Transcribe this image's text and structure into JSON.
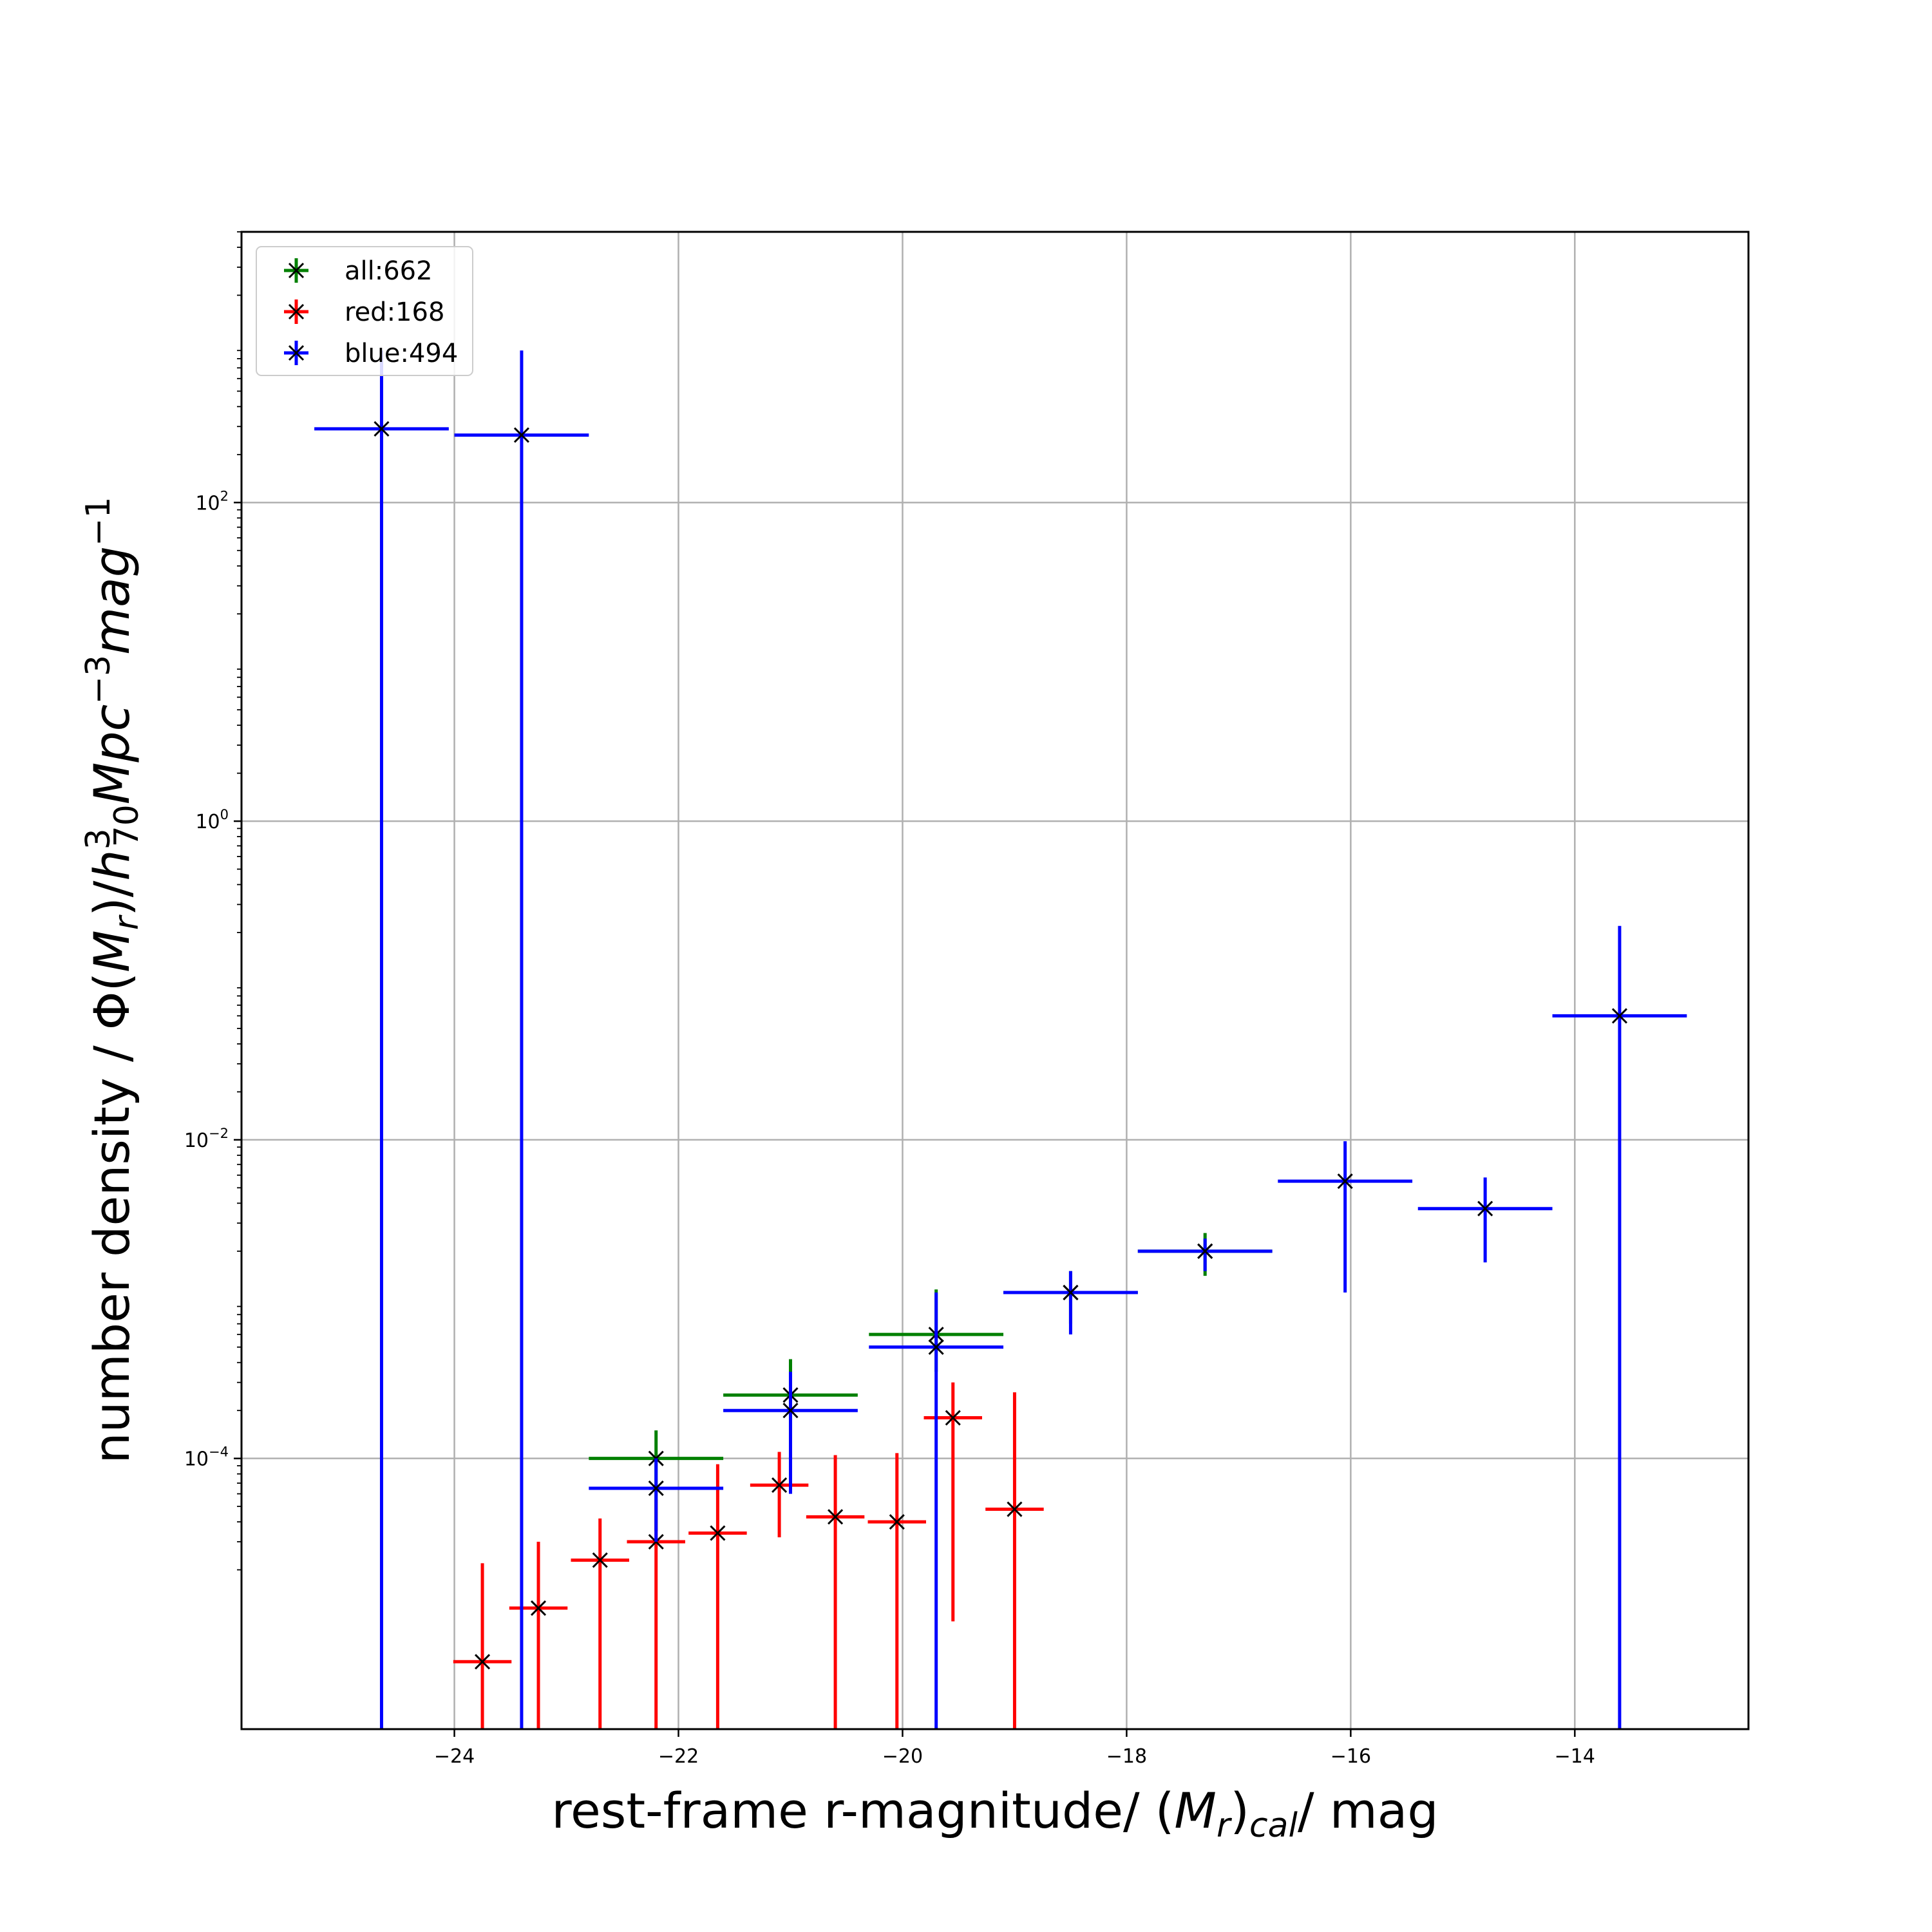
{
  "chart_data": {
    "type": "scatter",
    "title": "",
    "xlabel": "rest-frame r-magnitude/ (M_r)_cal/ mag",
    "ylabel": "number density / Φ(M_r)/h^3_70 Mpc^-3 mag^-1",
    "x_axis": {
      "range": [
        -25.9,
        -12.45
      ],
      "ticks": [
        -24,
        -22,
        -20,
        -18,
        -16,
        -14
      ],
      "tick_labels": [
        "−24",
        "−22",
        "−20",
        "−18",
        "−16",
        "−14"
      ]
    },
    "y_axis": {
      "scale": "log",
      "range": [
        2e-06,
        5000
      ],
      "ticks": [
        0.0001,
        0.01,
        1,
        100
      ],
      "tick_labels": [
        {
          "base": "10",
          "exp": "−4"
        },
        {
          "base": "10",
          "exp": "−2"
        },
        {
          "base": "10",
          "exp": "0"
        },
        {
          "base": "10",
          "exp": "2"
        }
      ]
    },
    "grid": true,
    "legend_placement": "upper-left",
    "series": [
      {
        "name": "all:662",
        "color": "#008000",
        "points": [
          {
            "x": -22.2,
            "y": 0.0001,
            "xerr": 0.6,
            "yerr_low": 3.5e-05,
            "yerr_high": 0.00015
          },
          {
            "x": -21.0,
            "y": 0.00025,
            "xerr": 0.6,
            "yerr_low": 0.00015,
            "yerr_high": 0.00042
          },
          {
            "x": -19.7,
            "y": 0.0006,
            "xerr": 0.6,
            "yerr_low": 0.00035,
            "yerr_high": 0.00115
          },
          {
            "x": -18.5,
            "y": 0.0011,
            "xerr": 0.6,
            "yerr_low": 0.0007,
            "yerr_high": 0.0015
          },
          {
            "x": -17.3,
            "y": 0.002,
            "xerr": 0.6,
            "yerr_low": 0.0014,
            "yerr_high": 0.0026
          }
        ]
      },
      {
        "name": "red:168",
        "color": "#ff0000",
        "points": [
          {
            "x": -23.75,
            "y": 5.3e-06,
            "xerr": 0.26,
            "yerr_low": 2e-06,
            "yerr_high": 2.2e-05
          },
          {
            "x": -23.25,
            "y": 1.15e-05,
            "xerr": 0.26,
            "yerr_low": 2e-06,
            "yerr_high": 3e-05
          },
          {
            "x": -22.7,
            "y": 2.3e-05,
            "xerr": 0.26,
            "yerr_low": 2e-06,
            "yerr_high": 4.2e-05
          },
          {
            "x": -22.2,
            "y": 3e-05,
            "xerr": 0.26,
            "yerr_low": 2e-06,
            "yerr_high": 5.5e-05
          },
          {
            "x": -21.65,
            "y": 3.4e-05,
            "xerr": 0.26,
            "yerr_low": 2e-06,
            "yerr_high": 9.2e-05
          },
          {
            "x": -21.1,
            "y": 6.8e-05,
            "xerr": 0.26,
            "yerr_low": 3.2e-05,
            "yerr_high": 0.00011
          },
          {
            "x": -20.6,
            "y": 4.3e-05,
            "xerr": 0.26,
            "yerr_low": 2e-06,
            "yerr_high": 0.000105
          },
          {
            "x": -20.05,
            "y": 4e-05,
            "xerr": 0.26,
            "yerr_low": 2e-06,
            "yerr_high": 0.000108
          },
          {
            "x": -19.55,
            "y": 0.00018,
            "xerr": 0.26,
            "yerr_low": 9.5e-06,
            "yerr_high": 0.0003
          },
          {
            "x": -19.0,
            "y": 4.8e-05,
            "xerr": 0.26,
            "yerr_low": 2e-06,
            "yerr_high": 0.00026
          }
        ]
      },
      {
        "name": "blue:494",
        "color": "#0000ff",
        "points": [
          {
            "x": -24.65,
            "y": 290,
            "xerr": 0.6,
            "yerr_low": 2e-06,
            "yerr_high": 900
          },
          {
            "x": -23.4,
            "y": 265,
            "xerr": 0.6,
            "yerr_low": 2e-06,
            "yerr_high": 900
          },
          {
            "x": -22.2,
            "y": 6.5e-05,
            "xerr": 0.6,
            "yerr_low": 3e-05,
            "yerr_high": 0.0001
          },
          {
            "x": -21.0,
            "y": 0.0002,
            "xerr": 0.6,
            "yerr_low": 6e-05,
            "yerr_high": 0.00035
          },
          {
            "x": -19.7,
            "y": 0.0005,
            "xerr": 0.6,
            "yerr_low": 2e-06,
            "yerr_high": 0.0011
          },
          {
            "x": -18.5,
            "y": 0.0011,
            "xerr": 0.6,
            "yerr_low": 0.0006,
            "yerr_high": 0.0015
          },
          {
            "x": -17.3,
            "y": 0.002,
            "xerr": 0.6,
            "yerr_low": 0.0015,
            "yerr_high": 0.0024
          },
          {
            "x": -16.05,
            "y": 0.0055,
            "xerr": 0.6,
            "yerr_low": 0.0011,
            "yerr_high": 0.0098
          },
          {
            "x": -14.8,
            "y": 0.0037,
            "xerr": 0.6,
            "yerr_low": 0.0017,
            "yerr_high": 0.0058
          },
          {
            "x": -13.6,
            "y": 0.06,
            "xerr": 0.6,
            "yerr_low": 2e-06,
            "yerr_high": 0.22
          }
        ]
      }
    ]
  }
}
